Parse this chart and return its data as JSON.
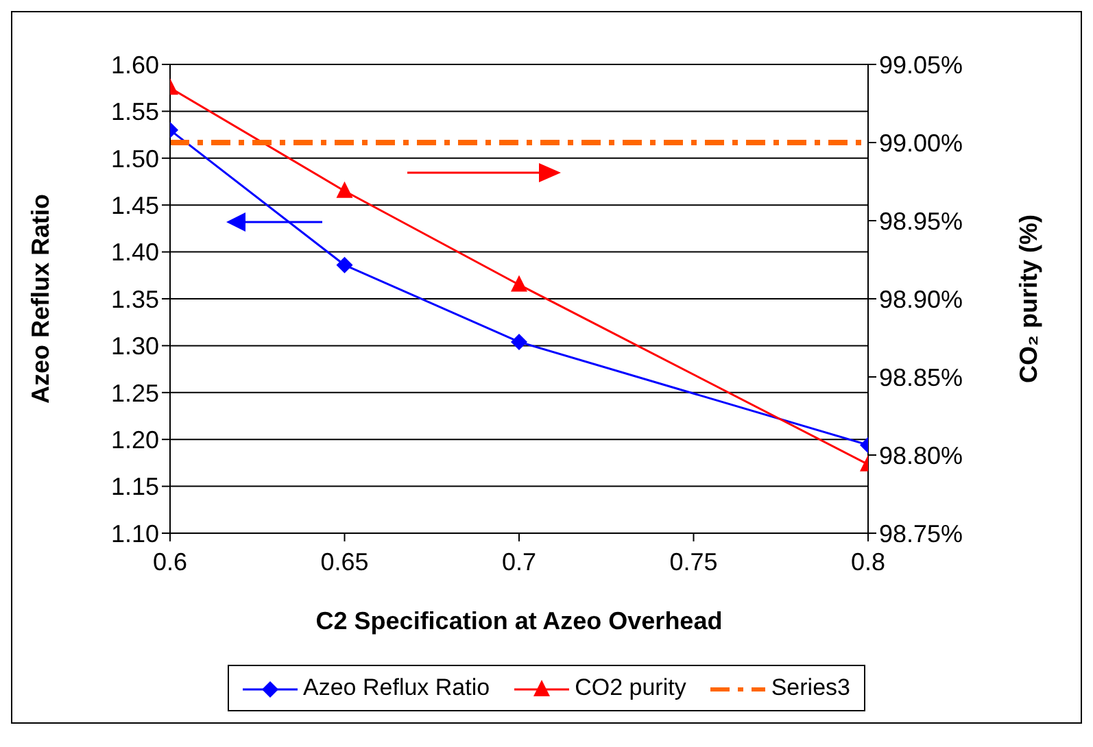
{
  "chart_data": {
    "type": "line",
    "xlabel": "C2 Specification at Azeo Overhead",
    "ylabel": "Azeo Reflux Ratio",
    "y2label": "CO₂ purity (%)",
    "xlim": [
      0.6,
      0.8
    ],
    "xticks": [
      0.6,
      0.65,
      0.7,
      0.75,
      0.8
    ],
    "ylim": [
      1.1,
      1.6
    ],
    "yticks": [
      {
        "value": 1.1,
        "label": "1.10"
      },
      1.15,
      {
        "value": 1.2,
        "label": "1.20"
      },
      1.25,
      {
        "value": 1.3,
        "label": "1.30"
      },
      1.35,
      {
        "value": 1.4,
        "label": "1.40"
      },
      1.45,
      {
        "value": 1.5,
        "label": "1.50"
      },
      1.55,
      {
        "value": 1.6,
        "label": "1.60"
      }
    ],
    "y2lim": [
      98.75,
      99.05
    ],
    "y2ticks": [
      {
        "value": 98.75,
        "label": "98.75%"
      },
      {
        "value": 98.8,
        "label": "98.80%"
      },
      {
        "value": 98.85,
        "label": "98.85%"
      },
      {
        "value": 98.9,
        "label": "98.90%"
      },
      {
        "value": 98.95,
        "label": "98.95%"
      },
      {
        "value": 99,
        "label": "99.00%"
      },
      {
        "value": 99.05,
        "label": "99.05%"
      }
    ],
    "grid": "y",
    "legend": "bottom",
    "line_style": "solid",
    "series": [
      {
        "name": "Azeo Reflux Ratio",
        "color": "#0000ff",
        "marker": "diamond",
        "x": [
          0.6,
          0.65,
          0.7,
          0.8
        ],
        "values": [
          1.53,
          1.386,
          1.304,
          1.194
        ]
      },
      {
        "name": "CO2 purity",
        "color": "#ff0000",
        "marker": "triangle",
        "axis": "y2",
        "x": [
          0.6,
          0.65,
          0.7,
          0.8
        ],
        "values": [
          99.035,
          98.969,
          98.909,
          98.794
        ]
      },
      {
        "name": "Series3",
        "color": "#ff6600",
        "marker": "none",
        "line_style": "dashed",
        "axis": "y2",
        "x": [
          0.6,
          0.8
        ],
        "values": [
          99,
          99
        ]
      }
    ]
  }
}
